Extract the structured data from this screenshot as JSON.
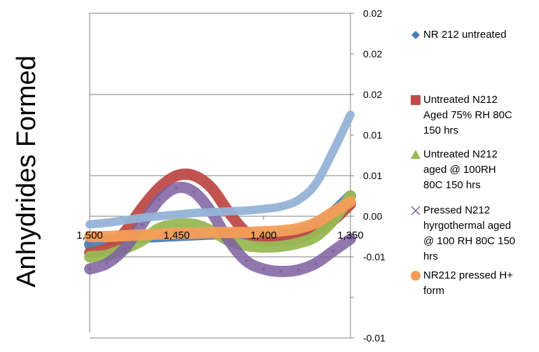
{
  "chart_data": {
    "type": "line",
    "title": "",
    "xlabel": "",
    "ylabel": "Anhydrides Formed",
    "x_reversed": true,
    "xlim": [
      1500,
      1350
    ],
    "ylim": [
      -0.015,
      0.025
    ],
    "x_ticks": [
      1500,
      1450,
      1400,
      1350
    ],
    "x_tick_labels": [
      "1,500",
      "1,450",
      "1,400",
      "1,350"
    ],
    "y_ticks": [
      -0.015,
      -0.01,
      -0.005,
      0.0,
      0.005,
      0.01,
      0.015,
      0.02,
      0.025
    ],
    "y_tick_labels": [
      "-0.01",
      "",
      "-0.01",
      "0.00",
      "0.01",
      "0.01",
      "0.02",
      "0.02",
      "0.02"
    ],
    "grid": "horizontal",
    "legend_position": "right",
    "series": [
      {
        "name": "NR 212 untreated",
        "color": "#4a7ebb",
        "marker": "diamond",
        "x": [
          1500,
          1490,
          1480,
          1470,
          1460,
          1450,
          1440,
          1430,
          1420,
          1410,
          1400,
          1390,
          1380,
          1370,
          1360,
          1350
        ],
        "values": [
          -0.0035,
          -0.003,
          -0.0028,
          -0.0026,
          -0.0025,
          -0.0024,
          -0.0023,
          -0.0022,
          -0.0022,
          -0.0023,
          -0.0024,
          -0.0024,
          -0.002,
          -0.001,
          0.0005,
          0.0025
        ]
      },
      {
        "name": "Untreated N212 Aged 75% RH 80C 150 hrs",
        "color": "#be4b48",
        "marker": "square",
        "x": [
          1500,
          1490,
          1480,
          1470,
          1460,
          1450,
          1440,
          1430,
          1420,
          1410,
          1400,
          1390,
          1380,
          1370,
          1360,
          1350
        ],
        "values": [
          -0.0045,
          -0.004,
          -0.002,
          0.001,
          0.0035,
          0.005,
          0.005,
          0.0035,
          0.0005,
          -0.002,
          -0.003,
          -0.003,
          -0.0027,
          -0.0018,
          -0.0005,
          0.0015
        ]
      },
      {
        "name": "Untreated N212 aged @ 100RH 80C 150 hrs",
        "color": "#98b954",
        "marker": "triangle",
        "x": [
          1500,
          1490,
          1480,
          1470,
          1460,
          1450,
          1440,
          1430,
          1420,
          1410,
          1400,
          1390,
          1380,
          1370,
          1360,
          1350
        ],
        "values": [
          -0.005,
          -0.0048,
          -0.004,
          -0.003,
          -0.0015,
          -0.001,
          -0.001,
          -0.0018,
          -0.003,
          -0.0036,
          -0.0038,
          -0.0037,
          -0.0033,
          -0.0025,
          -0.0005,
          0.0025
        ]
      },
      {
        "name": "Pressed N212 hyrgothermal aged @ 100 RH 80C 150 hrs",
        "color": "#7d60a0",
        "marker": "x",
        "x": [
          1500,
          1490,
          1480,
          1470,
          1460,
          1450,
          1440,
          1430,
          1420,
          1410,
          1400,
          1390,
          1380,
          1370,
          1360,
          1350
        ],
        "values": [
          -0.0065,
          -0.0058,
          -0.004,
          -0.001,
          0.002,
          0.0035,
          0.003,
          0.0005,
          -0.003,
          -0.0055,
          -0.0065,
          -0.0068,
          -0.0066,
          -0.0058,
          -0.0043,
          -0.0028
        ]
      },
      {
        "name": "NR212 pressed H+ form",
        "color": "#f59d56",
        "marker": "circle",
        "x": [
          1500,
          1490,
          1480,
          1470,
          1460,
          1450,
          1440,
          1430,
          1420,
          1410,
          1400,
          1390,
          1380,
          1370,
          1360,
          1350
        ],
        "values": [
          -0.0025,
          -0.0025,
          -0.0024,
          -0.0023,
          -0.0022,
          -0.0021,
          -0.0021,
          -0.002,
          -0.002,
          -0.002,
          -0.0019,
          -0.0018,
          -0.0015,
          -0.0008,
          0.0005,
          0.0018
        ]
      },
      {
        "name": "",
        "color": "#95b3d7",
        "marker": "plus",
        "x": [
          1500,
          1490,
          1480,
          1470,
          1460,
          1450,
          1440,
          1430,
          1420,
          1410,
          1400,
          1390,
          1380,
          1370,
          1360,
          1350
        ],
        "values": [
          -0.001,
          -0.0008,
          -0.0005,
          -0.0002,
          0.0,
          0.0002,
          0.0004,
          0.0005,
          0.0006,
          0.0007,
          0.0009,
          0.0012,
          0.002,
          0.004,
          0.008,
          0.0125
        ]
      }
    ]
  }
}
